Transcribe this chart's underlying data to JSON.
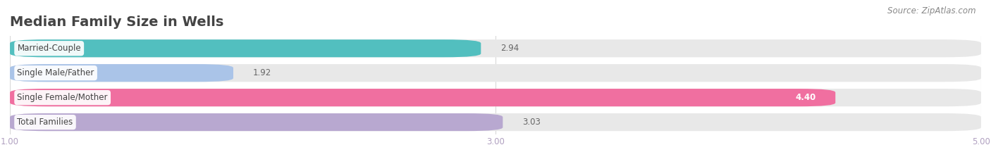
{
  "title": "Median Family Size in Wells",
  "source": "Source: ZipAtlas.com",
  "categories": [
    "Married-Couple",
    "Single Male/Father",
    "Single Female/Mother",
    "Total Families"
  ],
  "values": [
    2.94,
    1.92,
    4.4,
    3.03
  ],
  "bar_colors": [
    "#52bfbf",
    "#aac4e8",
    "#f06fa0",
    "#b8a8d0"
  ],
  "bar_bg_color": "#e8e8e8",
  "xlim": [
    1.0,
    5.0
  ],
  "xticks": [
    1.0,
    3.0,
    5.0
  ],
  "xtick_labels": [
    "1.00",
    "3.00",
    "5.00"
  ],
  "background_color": "#ffffff",
  "title_fontsize": 14,
  "label_fontsize": 8.5,
  "value_fontsize": 8.5,
  "source_fontsize": 8.5,
  "tick_label_color": "#b0a0c0"
}
